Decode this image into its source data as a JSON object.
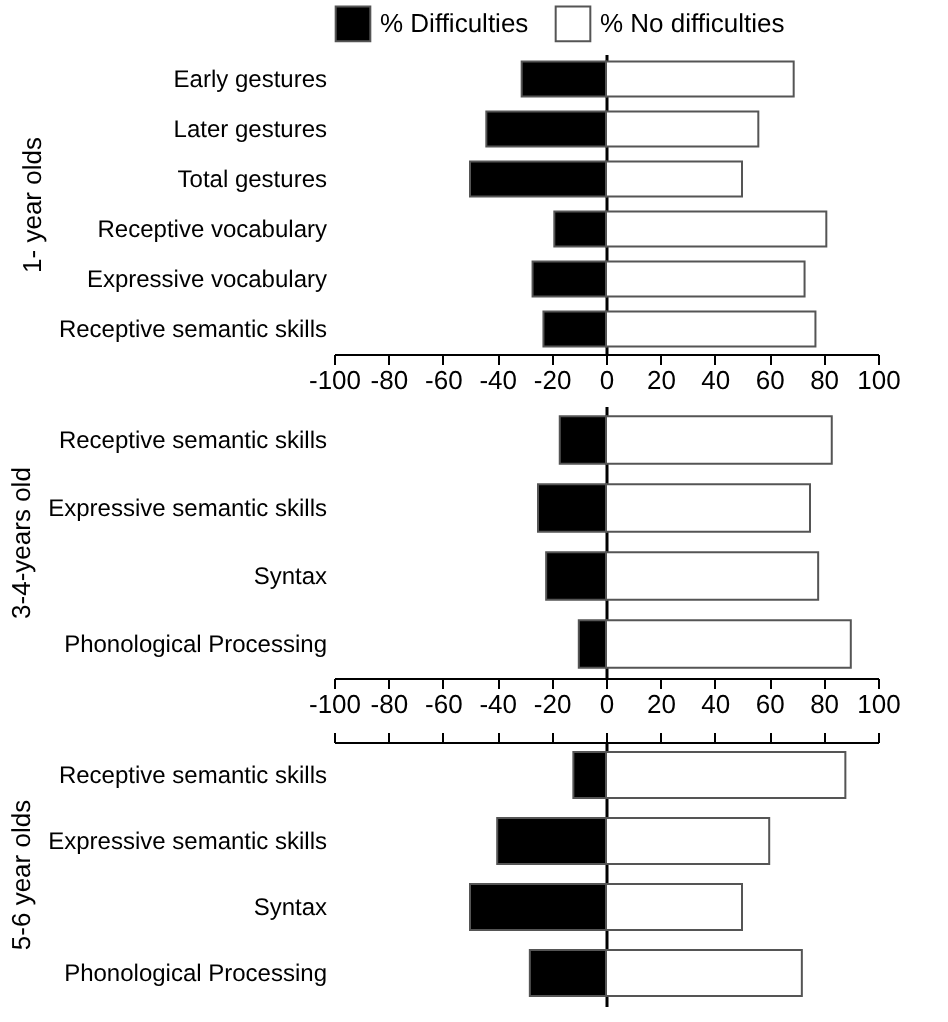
{
  "chart_data": [
    {
      "type": "bar",
      "orientation": "horizontal",
      "ylabel": "1- year olds",
      "categories": [
        "Early gestures",
        "Later gestures",
        "Total gestures",
        "Receptive vocabulary",
        "Expressive vocabulary",
        "Receptive semantic skills"
      ],
      "series": [
        {
          "name": "% Difficulties",
          "color": "#000000",
          "values": [
            -31,
            -44,
            -50,
            -19,
            -27,
            -23
          ]
        },
        {
          "name": "% No difficulties",
          "color": "#ffffff",
          "values": [
            69,
            56,
            50,
            81,
            73,
            77
          ]
        }
      ],
      "xlim": [
        -100,
        100
      ],
      "xticks": [
        -100,
        -80,
        -60,
        -40,
        -20,
        0,
        20,
        40,
        60,
        80,
        100
      ],
      "legend": "top",
      "stacked": true
    },
    {
      "type": "bar",
      "orientation": "horizontal",
      "ylabel": "3-4-years old",
      "categories": [
        "Receptive semantic skills",
        "Expressive semantic skills",
        "Syntax",
        "Phonological Processing"
      ],
      "series": [
        {
          "color": "#000000",
          "values": [
            -17,
            -25,
            -22,
            -10
          ]
        },
        {
          "color": "#ffffff",
          "values": [
            83,
            75,
            78,
            90
          ]
        }
      ],
      "xlim": [
        -100,
        100
      ],
      "xticks": [
        -100,
        -80,
        -60,
        -40,
        -20,
        0,
        20,
        40,
        60,
        80,
        100
      ],
      "stacked": true
    },
    {
      "type": "bar",
      "orientation": "horizontal",
      "ylabel": "5-6 year olds",
      "categories": [
        "Receptive semantic skills",
        "Expressive semantic skills",
        "Syntax",
        "Phonological Processing"
      ],
      "series": [
        {
          "color": "#000000",
          "values": [
            -12,
            -40,
            -50,
            -28
          ]
        },
        {
          "color": "#ffffff",
          "values": [
            88,
            60,
            50,
            72
          ]
        }
      ],
      "xlim": [
        -100,
        100
      ],
      "xticks": [
        -100,
        -80,
        -60,
        -40,
        -20,
        0,
        20,
        40,
        60,
        80,
        100
      ],
      "tick_labels": "y",
      "stacked": true
    }
  ]
}
